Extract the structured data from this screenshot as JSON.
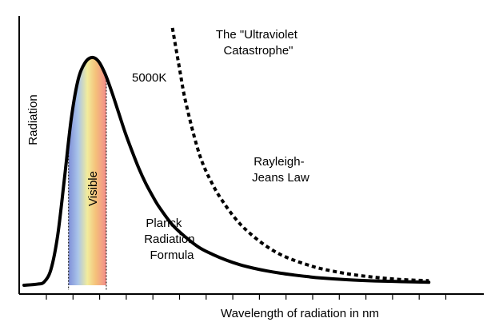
{
  "chart_data": {
    "type": "line",
    "title": "",
    "xlabel": "Wavelength of radiation in nm",
    "ylabel": "Radiation",
    "xlim": [
      0,
      16
    ],
    "ylim": [
      0,
      100
    ],
    "series": [
      {
        "name": "Planck Radiation Formula (5000K)",
        "style": "solid",
        "x": [
          0.0,
          0.5,
          0.75,
          1.0,
          1.25,
          1.5,
          1.75,
          2.0,
          2.25,
          2.5,
          2.75,
          3.0,
          3.25,
          3.5,
          3.75,
          4.0,
          4.25,
          4.5,
          4.75,
          5.0,
          5.5,
          6.0,
          6.5,
          7.0,
          7.5,
          8.0,
          8.5,
          9.0,
          9.5,
          10.0,
          10.5,
          11.0,
          12.0,
          13.0,
          14.0,
          15.0
        ],
        "y": [
          0.0,
          0.5,
          1.5,
          7.0,
          22.0,
          47.0,
          73.0,
          90.0,
          97.5,
          100.0,
          98.5,
          93.0,
          85.0,
          76.0,
          67.0,
          59.0,
          51.5,
          45.0,
          39.5,
          34.5,
          26.5,
          21.0,
          16.5,
          13.5,
          11.0,
          9.0,
          7.5,
          6.3,
          5.3,
          4.5,
          3.8,
          3.2,
          2.4,
          1.9,
          1.6,
          1.3
        ]
      },
      {
        "name": "Rayleigh-Jeans Law",
        "style": "dashed",
        "x": [
          5.5,
          5.75,
          6.0,
          6.5,
          7.0,
          7.5,
          8.0,
          8.5,
          9.0,
          9.5,
          10.0,
          10.5,
          11.0,
          12.0,
          13.0,
          14.0,
          15.0
        ],
        "y": [
          113.0,
          96.0,
          80.0,
          57.5,
          44.0,
          34.5,
          27.0,
          21.5,
          17.0,
          13.5,
          11.0,
          9.0,
          7.3,
          5.0,
          3.5,
          2.5,
          2.0
        ]
      }
    ],
    "visible_band": {
      "label": "Visible",
      "x_range": [
        1.65,
        3.05
      ]
    },
    "x_tick_count": 16,
    "annotations": [
      {
        "id": "ultraviolet-catastrophe",
        "lines": [
          "The \"Ultraviolet",
          "Catastrophe\""
        ]
      },
      {
        "id": "temperature",
        "lines": [
          "5000K"
        ]
      },
      {
        "id": "rayleigh-jeans",
        "lines": [
          "Rayleigh-",
          "Jeans Law"
        ]
      },
      {
        "id": "planck",
        "lines": [
          "Planck",
          "Radiation",
          "Formula"
        ]
      }
    ],
    "colors": {
      "curve": "#000000",
      "visible_gradient": [
        "#7f8fd8",
        "#a9c4ea",
        "#f2ec9c",
        "#f5c17a",
        "#f28c8a"
      ]
    }
  }
}
